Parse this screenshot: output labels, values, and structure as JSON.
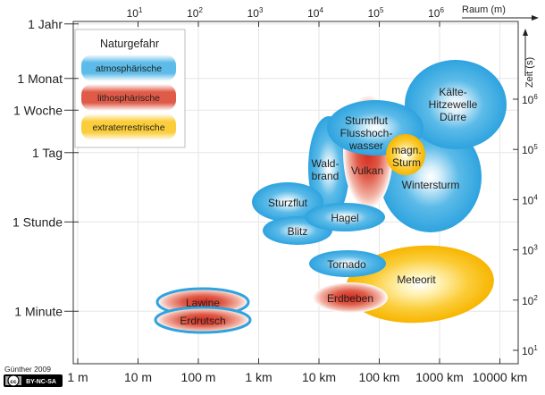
{
  "axes": {
    "x_label": "Raum (m)",
    "y_label": "Zeit (s)",
    "x_bottom_ticks": [
      {
        "label": "1 m",
        "exp": 0
      },
      {
        "label": "10 m",
        "exp": 1
      },
      {
        "label": "100 m",
        "exp": 2
      },
      {
        "label": "1 km",
        "exp": 3
      },
      {
        "label": "10 km",
        "exp": 4
      },
      {
        "label": "100 km",
        "exp": 5
      },
      {
        "label": "1000 km",
        "exp": 6
      },
      {
        "label": "10000 km",
        "exp": 7
      }
    ],
    "x_top_ticks": [
      {
        "base": "10",
        "sup": "1",
        "exp": 1
      },
      {
        "base": "10",
        "sup": "2",
        "exp": 2
      },
      {
        "base": "10",
        "sup": "3",
        "exp": 3
      },
      {
        "base": "10",
        "sup": "4",
        "exp": 4
      },
      {
        "base": "10",
        "sup": "5",
        "exp": 5
      },
      {
        "base": "10",
        "sup": "6",
        "exp": 6
      }
    ],
    "y_left_ticks": [
      {
        "label": "1 Jahr",
        "seconds": 31536000
      },
      {
        "label": "1 Monat",
        "seconds": 2592000
      },
      {
        "label": "1 Woche",
        "seconds": 604800
      },
      {
        "label": "1 Tag",
        "seconds": 86400
      },
      {
        "label": "1 Stunde",
        "seconds": 3600
      },
      {
        "label": "1 Minute",
        "seconds": 60
      }
    ],
    "y_right_ticks": [
      {
        "base": "10",
        "sup": "6",
        "exp": 6
      },
      {
        "base": "10",
        "sup": "5",
        "exp": 5
      },
      {
        "base": "10",
        "sup": "4",
        "exp": 4
      },
      {
        "base": "10",
        "sup": "3",
        "exp": 3
      },
      {
        "base": "10",
        "sup": "2",
        "exp": 2
      },
      {
        "base": "10",
        "sup": "1",
        "exp": 1
      }
    ],
    "x_scale": "log",
    "y_scale": "log"
  },
  "legend": {
    "title": "Naturgefahr",
    "items": [
      {
        "label": "atmosphärische",
        "color": "#2ea3df"
      },
      {
        "label": "lithosphärische",
        "color": "#d42b1e"
      },
      {
        "label": "extraterrestrische",
        "color": "#f7b500"
      }
    ]
  },
  "colors": {
    "atmosphärisch": "#2ea3df",
    "lithosphärisch": "#d42b1e",
    "extraterrestrisch": "#f7b500",
    "frame": "#333333",
    "grid": "#e6e6e6"
  },
  "hazards": [
    {
      "key": "lawine",
      "label": "Lawine"
    },
    {
      "key": "erdrutsch",
      "label": "Erdrutsch"
    },
    {
      "key": "sturzflut",
      "label": "Sturzflut"
    },
    {
      "key": "hagel",
      "label": "Hagel"
    },
    {
      "key": "blitz",
      "label": "Blitz"
    },
    {
      "key": "waldbrand",
      "label": "Wald-\nbrand"
    },
    {
      "key": "vulkan",
      "label": "Vulkan"
    },
    {
      "key": "sturmflut",
      "label": "Sturmflut\nFlusshoch-\nwasser"
    },
    {
      "key": "magn_sturm",
      "label": "magn.\nSturm"
    },
    {
      "key": "kaelte",
      "label": "Kälte-\nHitzewelle\nDürre"
    },
    {
      "key": "wintersturm",
      "label": "Wintersturm"
    },
    {
      "key": "tornado",
      "label": "Tornado"
    },
    {
      "key": "erdbeben",
      "label": "Erdbeben"
    },
    {
      "key": "meteorit",
      "label": "Meteorit"
    }
  ],
  "footer": {
    "author": "Günther 2009",
    "license_cc": "cc",
    "license_text": "BY-NC-SA"
  }
}
